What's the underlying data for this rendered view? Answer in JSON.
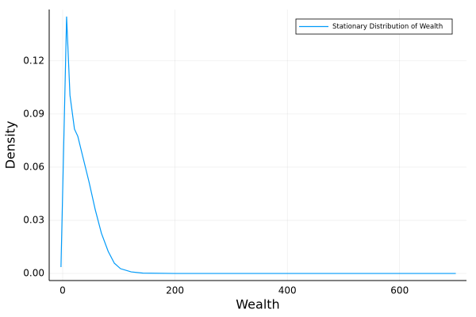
{
  "chart_data": {
    "type": "line",
    "x_label": "Wealth",
    "y_label": "Density",
    "x": [
      -3,
      7,
      13,
      21,
      27,
      35,
      47,
      58,
      69,
      81,
      92,
      103,
      122,
      143,
      200,
      400,
      700
    ],
    "series": [
      {
        "name": "Stationary Distribution of Wealth",
        "color": "#009af9",
        "values": [
          0.0036,
          0.145,
          0.1006,
          0.0815,
          0.0774,
          0.067,
          0.0516,
          0.036,
          0.0227,
          0.0125,
          0.0058,
          0.0027,
          0.0009,
          0.0002,
          0,
          0,
          0
        ]
      }
    ],
    "xlim": [
      -24,
      719
    ],
    "ylim": [
      -0.004,
      0.149
    ],
    "xticks": [
      0,
      200,
      400,
      600
    ],
    "yticks": [
      {
        "value": 0,
        "label": "0.00"
      },
      {
        "value": 0.03,
        "label": "0.03"
      },
      {
        "value": 0.06,
        "label": "0.06"
      },
      {
        "value": 0.09,
        "label": "0.09"
      },
      {
        "value": 0.12,
        "label": "0.12"
      }
    ],
    "grid": true,
    "legend_position": "top-right"
  }
}
